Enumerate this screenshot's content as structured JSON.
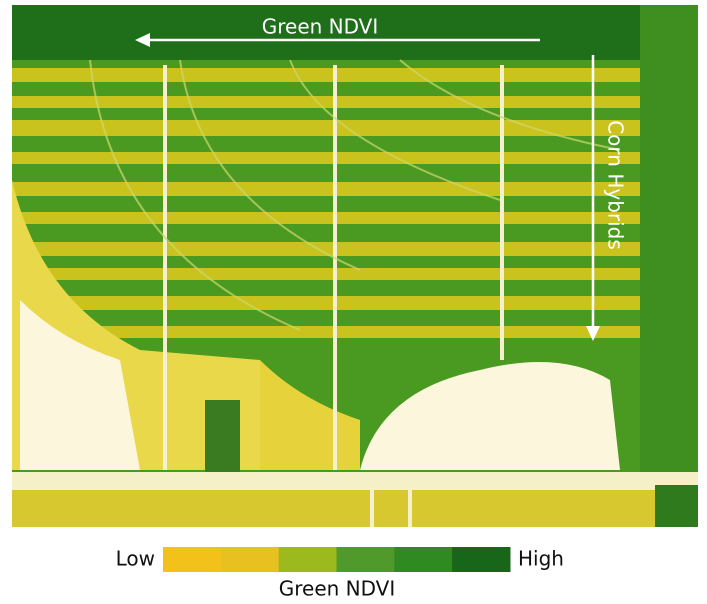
{
  "image": {
    "arrow_label": "Green NDVI",
    "side_label": "Corn Hybrids"
  },
  "legend": {
    "low": "Low",
    "high": "High",
    "title": "Green NDVI",
    "colors": [
      "#f2c21a",
      "#e8c020",
      "#9cba1e",
      "#4f9a2a",
      "#2f8a22",
      "#17661a"
    ]
  }
}
